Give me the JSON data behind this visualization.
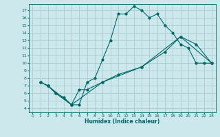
{
  "title": "",
  "xlabel": "Humidex (Indice chaleur)",
  "bg_color": "#cce8ec",
  "line_color": "#006666",
  "grid_color": "#aacccc",
  "xlim": [
    -0.5,
    23.5
  ],
  "ylim": [
    3.5,
    17.8
  ],
  "xticks": [
    0,
    1,
    2,
    3,
    4,
    5,
    6,
    7,
    8,
    9,
    10,
    11,
    12,
    13,
    14,
    15,
    16,
    17,
    18,
    19,
    20,
    21,
    22,
    23
  ],
  "yticks": [
    4,
    5,
    6,
    7,
    8,
    9,
    10,
    11,
    12,
    13,
    14,
    15,
    16,
    17
  ],
  "line1_x": [
    1,
    2,
    3,
    4,
    5,
    6,
    7,
    8,
    9,
    10,
    11,
    12,
    13,
    14,
    15,
    16,
    17,
    18,
    19,
    20,
    21,
    22,
    23
  ],
  "line1_y": [
    7.5,
    7.0,
    6.0,
    5.5,
    4.5,
    4.5,
    7.5,
    8.0,
    10.5,
    13.0,
    16.5,
    16.5,
    17.5,
    17.0,
    16.0,
    16.5,
    15.0,
    14.0,
    12.5,
    12.0,
    10.0,
    10.0,
    10.0
  ],
  "line2_x": [
    1,
    2,
    3,
    5,
    6,
    7,
    9,
    11,
    14,
    17,
    19,
    21,
    23
  ],
  "line2_y": [
    7.5,
    7.0,
    6.0,
    4.5,
    6.5,
    6.5,
    7.5,
    8.5,
    9.5,
    11.5,
    13.5,
    12.5,
    10.0
  ],
  "line3_x": [
    1,
    2,
    5,
    9,
    14,
    19,
    23
  ],
  "line3_y": [
    7.5,
    7.0,
    4.5,
    7.5,
    9.5,
    13.5,
    10.0
  ]
}
